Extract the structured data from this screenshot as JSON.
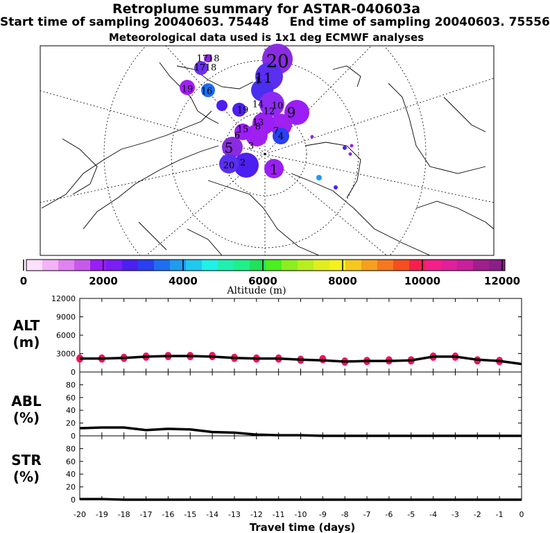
{
  "header": {
    "title": "Retroplume summary for ASTAR-040603a",
    "sampling_line": "Start time of sampling 20040603. 75448     End time of sampling 20040603. 75556",
    "met_line": "Meteorological data used is 1x1 deg ECMWF analyses"
  },
  "map": {
    "plume_labels": [
      "1",
      "2",
      "3",
      "4",
      "5",
      "6",
      "7",
      "8",
      "9",
      "10",
      "11",
      "12",
      "13",
      "14",
      "15",
      "16",
      "17",
      "18",
      "19",
      "20",
      "20",
      "1",
      "19",
      "1718"
    ]
  },
  "colorbar": {
    "title": "Altitude (m)",
    "tick_labels": [
      "0",
      "2000",
      "4000",
      "6000",
      "8000",
      "10000",
      "12000"
    ],
    "colors": [
      "#fde0fd",
      "#f3b2f7",
      "#e083f0",
      "#c85aeb",
      "#9b1ef5",
      "#7a1ef5",
      "#4d1ff0",
      "#2a3ff0",
      "#1f6df0",
      "#1f9bf0",
      "#1fc9f0",
      "#1ff0e8",
      "#1ff0b0",
      "#1ff08a",
      "#1fe25a",
      "#4bee1f",
      "#8cee1f",
      "#b8ee1f",
      "#e0ee1f",
      "#f5f01f",
      "#f5c81f",
      "#f5a01f",
      "#f5781f",
      "#f54e1f",
      "#f51f4e",
      "#f51f8a",
      "#e01f9b",
      "#c81f9b",
      "#a01f8a",
      "#8a1f8a"
    ]
  },
  "chart_data": [
    {
      "type": "line",
      "title": "ALT (m)",
      "xlabel": "Travel time (days)",
      "ylabel": "ALT (m)",
      "x": [
        -20,
        -19,
        -18,
        -17,
        -16,
        -15,
        -14,
        -13,
        -12,
        -11,
        -10,
        -9,
        -8,
        -7,
        -6,
        -5,
        -4,
        -3,
        -2,
        -1,
        0
      ],
      "values": [
        2200,
        2200,
        2300,
        2500,
        2600,
        2600,
        2500,
        2300,
        2200,
        2200,
        2000,
        1900,
        1700,
        1800,
        1800,
        1900,
        2500,
        2500,
        2000,
        1800,
        1300
      ],
      "markers": [
        2200,
        2200,
        2300,
        2500,
        2600,
        2600,
        2600,
        2300,
        2200,
        2200,
        2000,
        2100,
        1700,
        1800,
        1900,
        1900,
        2500,
        2500,
        1900,
        1800
      ],
      "ylim": [
        0,
        12000
      ],
      "yticks": [
        "0",
        "3000",
        "6000",
        "9000",
        "12000"
      ]
    },
    {
      "type": "line",
      "title": "ABL (%)",
      "ylabel": "ABL (%)",
      "x": [
        -20,
        -19,
        -18,
        -17,
        -16,
        -15,
        -14,
        -13,
        -12,
        -11,
        -10,
        -9,
        -8,
        -7,
        -6,
        -5,
        -4,
        -3,
        -2,
        -1,
        0
      ],
      "values": [
        12,
        13,
        13,
        9,
        11,
        10,
        6,
        5,
        2,
        1,
        1,
        0,
        0,
        0,
        0,
        0,
        0,
        0,
        0,
        0,
        0
      ],
      "ylim": [
        0,
        100
      ],
      "yticks": [
        "0",
        "20",
        "40",
        "60",
        "80"
      ]
    },
    {
      "type": "line",
      "title": "STR (%)",
      "ylabel": "STR (%)",
      "x": [
        -20,
        -19,
        -18,
        -17,
        -16,
        -15,
        -14,
        -13,
        -12,
        -11,
        -10,
        -9,
        -8,
        -7,
        -6,
        -5,
        -4,
        -3,
        -2,
        -1,
        0
      ],
      "values": [
        1,
        1,
        0,
        0,
        0,
        0,
        0,
        0,
        0,
        0,
        0,
        0,
        0,
        0,
        0,
        0,
        0,
        0,
        0,
        0,
        0
      ],
      "ylim": [
        0,
        100
      ],
      "yticks": [
        "0",
        "20",
        "40",
        "60",
        "80"
      ]
    }
  ],
  "panels": {
    "alt_label1": "ALT",
    "alt_label2": "(m)",
    "abl_label1": "ABL",
    "abl_label2": "(%)",
    "str_label1": "STR",
    "str_label2": "(%)"
  },
  "xaxis": {
    "tick_labels": [
      "-20",
      "-19",
      "-18",
      "-17",
      "-16",
      "-15",
      "-14",
      "-13",
      "-12",
      "-11",
      "-10",
      "-9",
      "-8",
      "-7",
      "-6",
      "-5",
      "-4",
      "-3",
      "-2",
      "-1",
      "0"
    ],
    "title": "Travel time (days)"
  }
}
